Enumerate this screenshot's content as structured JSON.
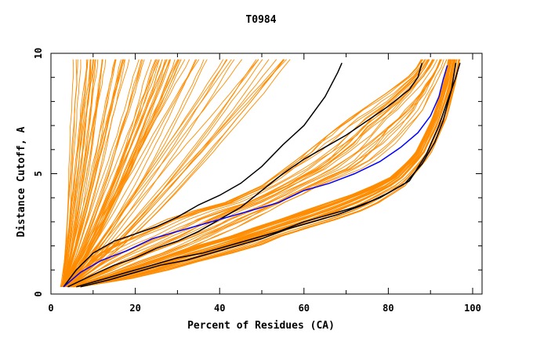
{
  "chart_data": {
    "type": "line",
    "title": "T0984",
    "xlabel": "Percent of Residues (CA)",
    "ylabel": "Distance Cutoff, A",
    "xlim": [
      0,
      100
    ],
    "ylim": [
      0,
      10
    ],
    "x_ticks": [
      "0",
      "20",
      "40",
      "60",
      "80",
      "100"
    ],
    "y_ticks": [
      "0",
      "5",
      "10"
    ],
    "colors": {
      "orange": "#ff8c00",
      "black": "#000000",
      "blue": "#0000ff"
    },
    "group_bundles": [
      {
        "name": "steep orange bundle",
        "count": 55,
        "start_x_range": [
          2.2,
          3.2
        ],
        "end_x_range": [
          6,
          31
        ],
        "spread": 0.4,
        "curve": 0.72
      },
      {
        "name": "mid-steep orange bundle",
        "count": 25,
        "start_x_range": [
          2.5,
          4
        ],
        "end_x_range": [
          30,
          57
        ],
        "spread": 0.35,
        "curve": 0.75
      },
      {
        "name": "broad orange bundle upper",
        "count": 30,
        "upper_bound": [
          [
            3,
            0.3
          ],
          [
            8,
            1.3
          ],
          [
            12,
            1.9
          ],
          [
            20,
            2.5
          ],
          [
            30,
            3.3
          ],
          [
            40,
            3.7
          ],
          [
            50,
            4.5
          ],
          [
            60,
            5.8
          ],
          [
            70,
            7.2
          ],
          [
            80,
            8.4
          ],
          [
            86,
            9.2
          ],
          [
            88,
            9.8
          ]
        ],
        "lower_bound": [
          [
            6,
            0.3
          ],
          [
            15,
            0.8
          ],
          [
            25,
            1.4
          ],
          [
            35,
            2.0
          ],
          [
            45,
            2.8
          ],
          [
            55,
            3.7
          ],
          [
            65,
            4.6
          ],
          [
            75,
            5.3
          ],
          [
            82,
            6.3
          ],
          [
            88,
            7.6
          ],
          [
            92,
            9.0
          ],
          [
            94,
            9.8
          ]
        ]
      },
      {
        "name": "broad orange bundle lower",
        "count": 40,
        "upper_bound": [
          [
            4,
            0.3
          ],
          [
            12,
            0.7
          ],
          [
            22,
            1.3
          ],
          [
            32,
            1.9
          ],
          [
            42,
            2.4
          ],
          [
            52,
            3.0
          ],
          [
            62,
            3.6
          ],
          [
            72,
            4.2
          ],
          [
            80,
            4.8
          ],
          [
            86,
            5.8
          ],
          [
            90,
            7.2
          ],
          [
            93,
            8.8
          ],
          [
            94,
            9.8
          ]
        ],
        "lower_bound": [
          [
            7,
            0.3
          ],
          [
            18,
            0.6
          ],
          [
            28,
            1.0
          ],
          [
            38,
            1.5
          ],
          [
            48,
            1.9
          ],
          [
            56,
            2.5
          ],
          [
            66,
            3.0
          ],
          [
            76,
            3.6
          ],
          [
            84,
            4.5
          ],
          [
            90,
            5.8
          ],
          [
            94,
            7.4
          ],
          [
            96,
            8.8
          ],
          [
            97,
            9.8
          ]
        ]
      }
    ],
    "series": [
      {
        "name": "black line 1",
        "color": "black",
        "points": [
          [
            3,
            0.3
          ],
          [
            6,
            1.0
          ],
          [
            10,
            1.7
          ],
          [
            15,
            2.2
          ],
          [
            20,
            2.5
          ],
          [
            25,
            2.8
          ],
          [
            30,
            3.2
          ],
          [
            35,
            3.7
          ],
          [
            40,
            4.1
          ],
          [
            45,
            4.6
          ],
          [
            50,
            5.3
          ],
          [
            55,
            6.2
          ],
          [
            60,
            7.0
          ],
          [
            65,
            8.2
          ],
          [
            68,
            9.2
          ],
          [
            69,
            9.6
          ]
        ]
      },
      {
        "name": "black line 2",
        "color": "black",
        "points": [
          [
            4,
            0.3
          ],
          [
            10,
            0.8
          ],
          [
            15,
            1.2
          ],
          [
            20,
            1.5
          ],
          [
            25,
            1.9
          ],
          [
            30,
            2.2
          ],
          [
            35,
            2.6
          ],
          [
            40,
            3.1
          ],
          [
            45,
            3.6
          ],
          [
            50,
            4.3
          ],
          [
            55,
            5.0
          ],
          [
            60,
            5.6
          ],
          [
            65,
            6.1
          ],
          [
            70,
            6.6
          ],
          [
            75,
            7.2
          ],
          [
            80,
            7.8
          ],
          [
            85,
            8.5
          ],
          [
            87,
            9.0
          ],
          [
            88,
            9.6
          ]
        ]
      },
      {
        "name": "black line 3",
        "color": "black",
        "points": [
          [
            6,
            0.3
          ],
          [
            12,
            0.6
          ],
          [
            18,
            0.9
          ],
          [
            24,
            1.2
          ],
          [
            30,
            1.5
          ],
          [
            36,
            1.7
          ],
          [
            42,
            2.0
          ],
          [
            48,
            2.3
          ],
          [
            54,
            2.6
          ],
          [
            60,
            3.0
          ],
          [
            66,
            3.3
          ],
          [
            72,
            3.6
          ],
          [
            78,
            4.0
          ],
          [
            84,
            4.6
          ],
          [
            88,
            5.4
          ],
          [
            91,
            6.3
          ],
          [
            93,
            7.2
          ],
          [
            95,
            8.5
          ],
          [
            96,
            9.6
          ]
        ]
      },
      {
        "name": "black line 4",
        "color": "black",
        "points": [
          [
            7,
            0.3
          ],
          [
            14,
            0.6
          ],
          [
            20,
            0.9
          ],
          [
            26,
            1.2
          ],
          [
            32,
            1.4
          ],
          [
            38,
            1.7
          ],
          [
            44,
            2.0
          ],
          [
            50,
            2.3
          ],
          [
            56,
            2.7
          ],
          [
            62,
            3.0
          ],
          [
            68,
            3.3
          ],
          [
            74,
            3.7
          ],
          [
            80,
            4.2
          ],
          [
            85,
            4.7
          ],
          [
            89,
            5.8
          ],
          [
            92,
            7.0
          ],
          [
            94,
            8.0
          ],
          [
            96,
            9.0
          ],
          [
            97,
            9.6
          ]
        ]
      },
      {
        "name": "blue line",
        "color": "blue",
        "points": [
          [
            3,
            0.3
          ],
          [
            7,
            0.9
          ],
          [
            12,
            1.4
          ],
          [
            18,
            1.8
          ],
          [
            24,
            2.3
          ],
          [
            30,
            2.6
          ],
          [
            36,
            2.9
          ],
          [
            42,
            3.2
          ],
          [
            48,
            3.5
          ],
          [
            54,
            3.8
          ],
          [
            60,
            4.3
          ],
          [
            66,
            4.6
          ],
          [
            72,
            5.0
          ],
          [
            78,
            5.5
          ],
          [
            83,
            6.1
          ],
          [
            87,
            6.7
          ],
          [
            90,
            7.4
          ],
          [
            92,
            8.2
          ],
          [
            93,
            8.9
          ],
          [
            94,
            9.5
          ]
        ]
      }
    ]
  }
}
